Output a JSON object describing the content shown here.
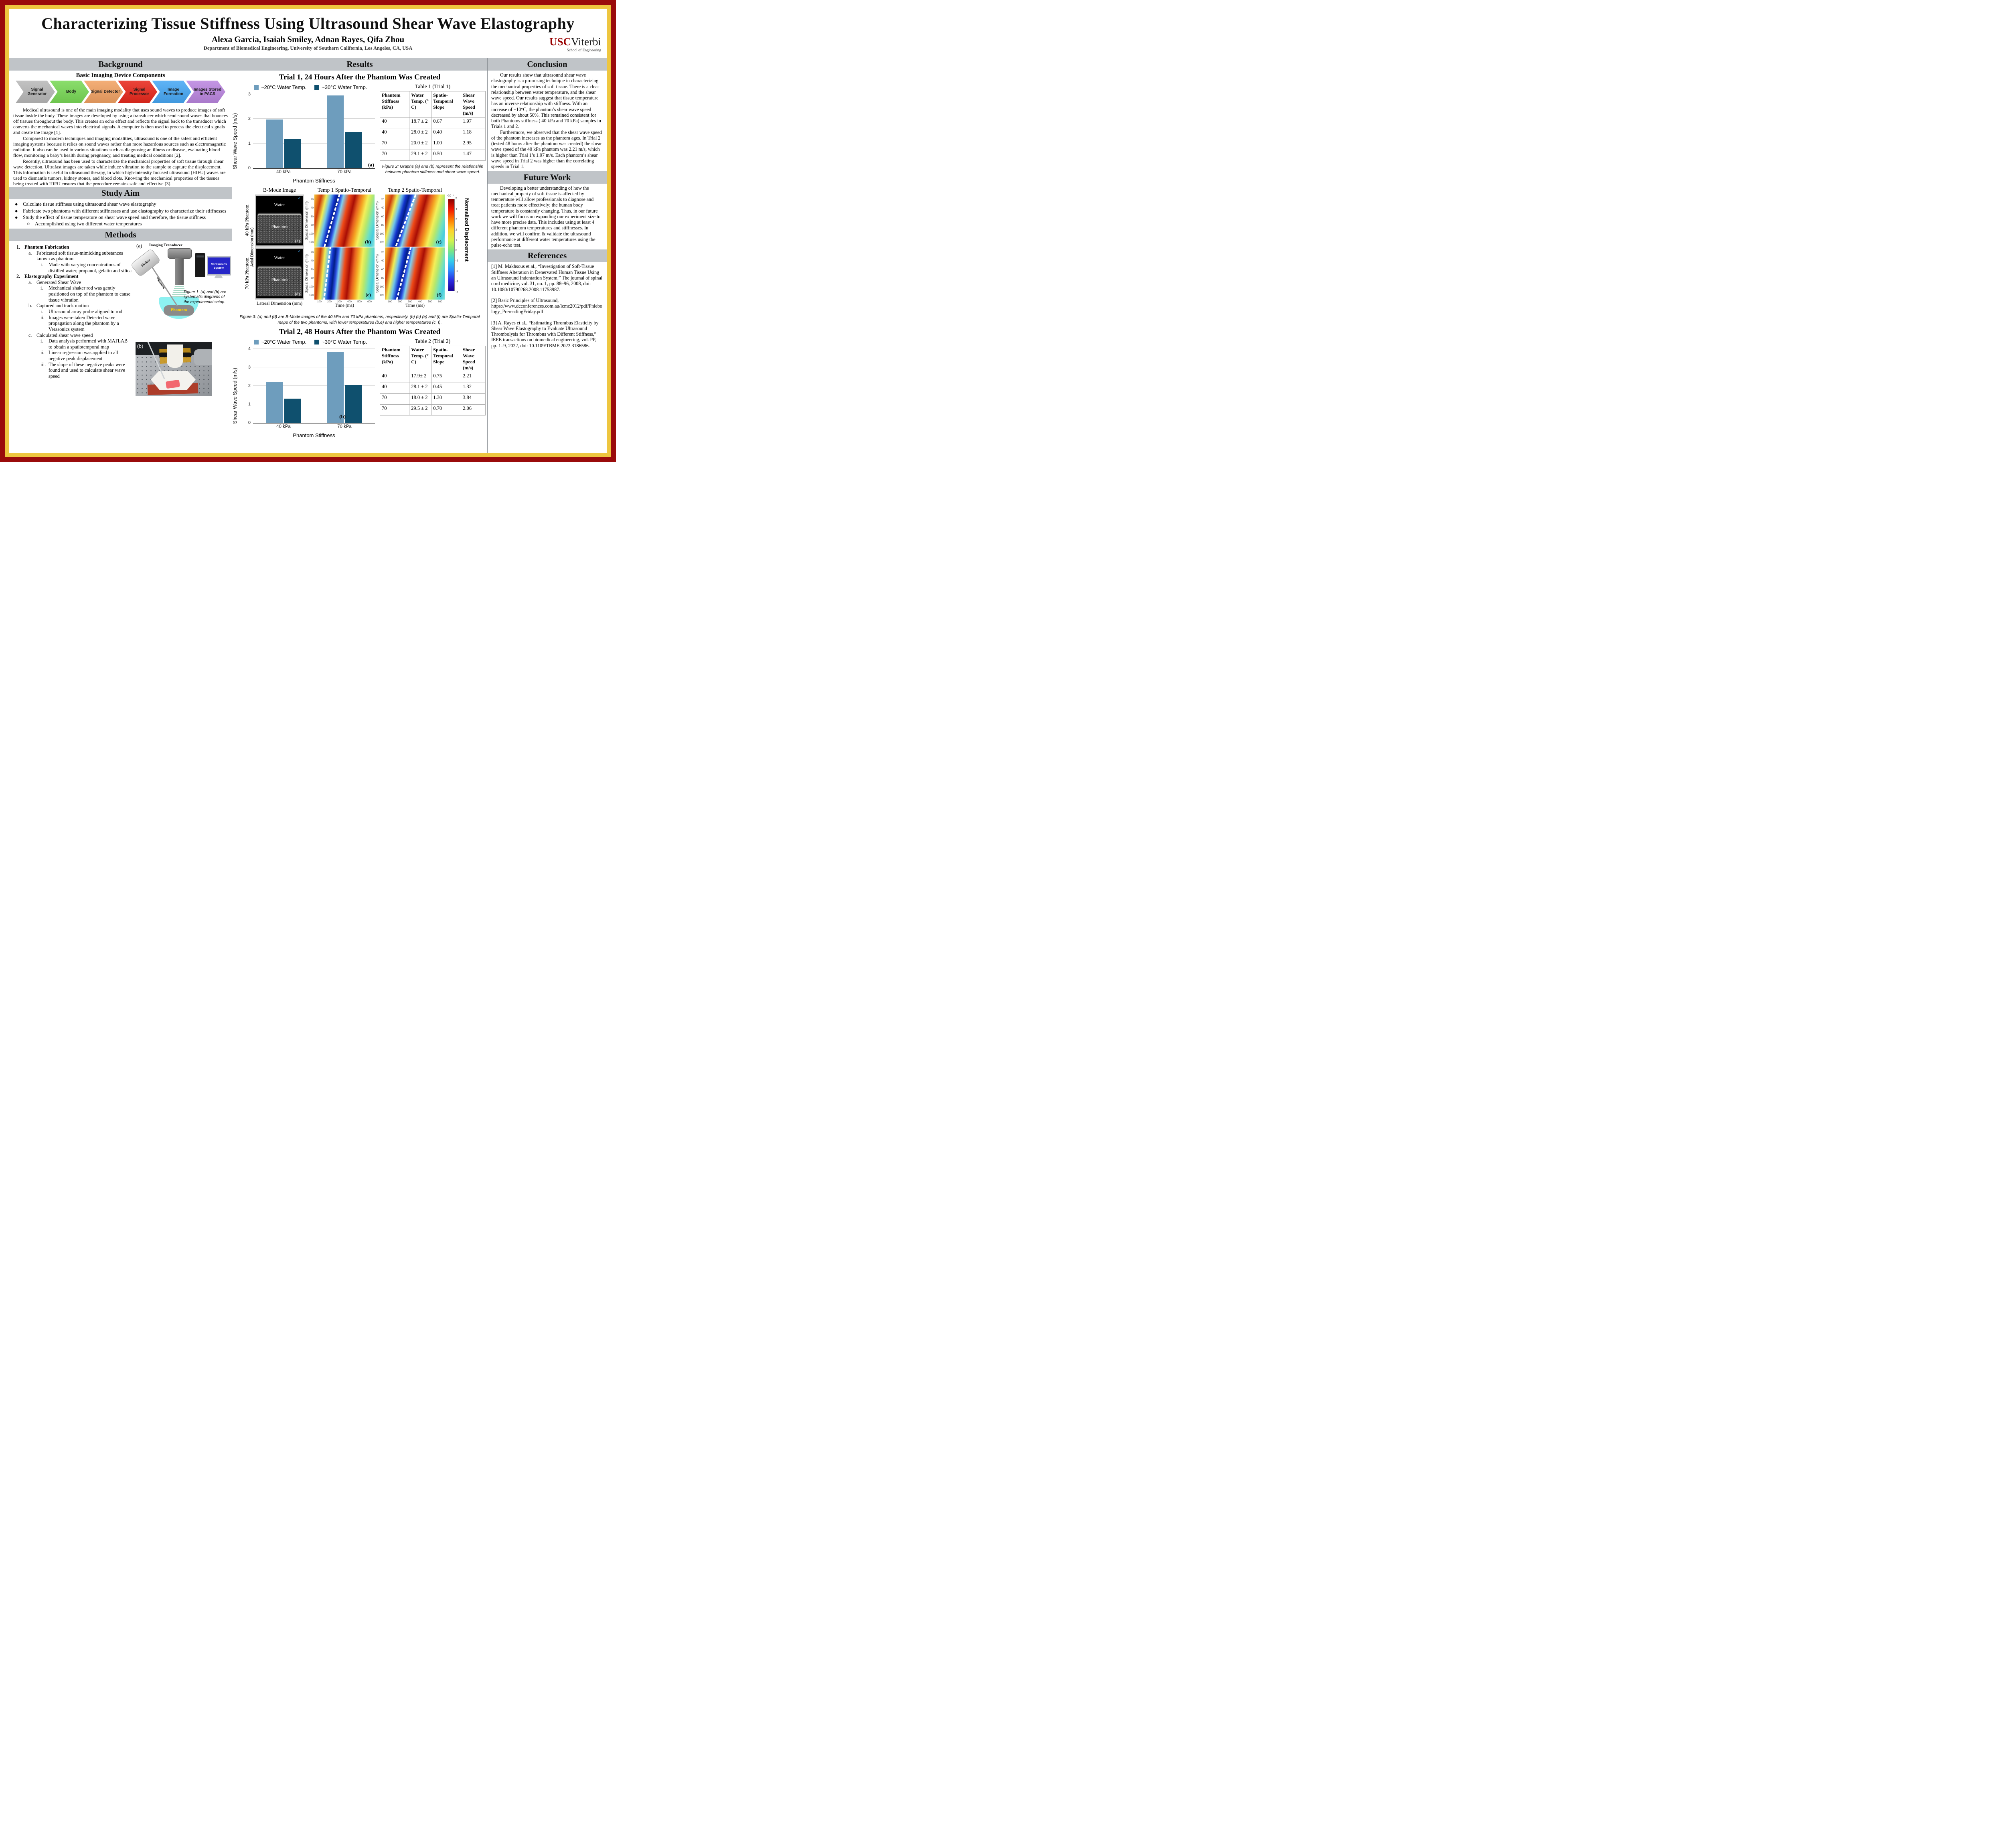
{
  "poster": {
    "title": "Characterizing Tissue Stiffness Using Ultrasound Shear Wave Elastography",
    "authors": "Alexa Garcia, Isaiah Smiley, Adnan Rayes, Qifa Zhou",
    "affiliation": "Department of Biomedical Engineering, University of Southern California, Los Angeles, CA, USA",
    "logo": {
      "usc": "USC",
      "viterbi": "Viterbi",
      "school": "School of Engineering"
    }
  },
  "background": {
    "header": "Background",
    "diagram_title": "Basic Imaging Device Components",
    "pipeline": [
      {
        "label": "Signal Generator",
        "color": "#b9b9b9"
      },
      {
        "label": "Body",
        "color": "#79d956"
      },
      {
        "label": "Signal Detector",
        "color": "#f2a263"
      },
      {
        "label": "Signal Processor",
        "color": "#e8281c"
      },
      {
        "label": "Image Formation",
        "color": "#47a8f5"
      },
      {
        "label": "Images Stored in PACS",
        "color": "#bb86e0"
      }
    ],
    "paragraphs": [
      "Medical ultrasound is one of the main imaging modality that uses sound waves to produce images of soft tissue inside the body. These images are developed by using a transducer which send sound waves that bounces off tissues throughout the body. This creates an echo effect and reflects the signal back to the transducer which converts the mechanical waves into electrical signals. A computer is then used to process the electrical signals and create the image [1].",
      "Compared to modern techniques and imaging modalities, ultrasound is one of the safest and efficient imaging systems because it relies on sound waves rather than more hazardous sources such as electromagnetic radiation. It also can be used in various situations such as diagnosing an illness or disease, evaluating blood flow, monitoring a baby’s health during pregnancy, and treating medical conditions [2].",
      "Recently, ultrasound has been used to characterize the mechanical properties of soft tissue through shear wave detection. Ultrafast images are taken while induce vibration to the sample to capture the displacement. This information is useful in ultrasound therapy, in which high-intensity focused ultrasound (HIFU) waves are used to dismantle tumors, kidney stones, and blood clots. Knowing the mechanical properties of the tissues being treated with HIFU ensures that the procedure remains safe and effective [3]."
    ]
  },
  "study_aim": {
    "header": "Study Aim",
    "items": [
      {
        "m": "●",
        "t": "Calculate tissue stiffness using ultrasound shear wave elastography",
        "i": 0
      },
      {
        "m": "●",
        "t": "Fabricate two phantoms with different stiffnesses and use elastography to characterize their stiffnesses",
        "i": 0
      },
      {
        "m": "●",
        "t": "Study the effect of tissue temperature  on shear wave speed and therefore, the tissue stiffness",
        "i": 0
      },
      {
        "m": "○",
        "t": "Accomplished using two different water temperatures",
        "i": 1
      }
    ]
  },
  "methods": {
    "header": "Methods",
    "items": [
      {
        "m": "1.",
        "t": "Phantom Fabrication",
        "i": 0,
        "b": true
      },
      {
        "m": "a.",
        "t": "Fabricated soft tissue-mimicking substances known as phantom",
        "i": 1
      },
      {
        "m": "i.",
        "t": "Made with varying concentrations of distilled water, propanol, gelatin and silica",
        "i": 2
      },
      {
        "m": "2.",
        "t": "Elastography Experiment",
        "i": 0,
        "b": true
      },
      {
        "m": "a.",
        "t": "Generated Shear Wave",
        "i": 1
      },
      {
        "m": "i.",
        "t": "Mechanical shaker rod was gently positioned on top of the phantom to cause tissue vibration",
        "i": 2
      },
      {
        "m": "b.",
        "t": "Captured and track motion",
        "i": 1
      },
      {
        "m": "i.",
        "t": "Ultrasound array probe aligned to rod",
        "i": 2
      },
      {
        "m": "ii.",
        "t": "Images were taken Detected wave propagation along the phantom by a Verasonics system",
        "i": 2
      },
      {
        "m": "c.",
        "t": "Calculated shear wave speed",
        "i": 1
      },
      {
        "m": "i.",
        "t": "Data analysis performed with MATLAB to obtain a spatiotemporal map",
        "i": 2
      },
      {
        "m": "ii.",
        "t": "Linear regression was applied to all negative peak displacement",
        "i": 2
      },
      {
        "m": "iii.",
        "t": "The slope of these negative peaks were found and used to calculate shear wave speed",
        "i": 2
      }
    ],
    "figure1": {
      "panel_a": "(a)",
      "panel_b": "(b)",
      "imaging_transducer": "Imaging Transducer",
      "shaker": "Shaker",
      "vibration": "Vibration",
      "phantom": "Phantom",
      "verasonics": "Verasonics System",
      "caption": "Figure 1: (a) and (b) are systematic diagrams of the experimental setup."
    }
  },
  "results": {
    "header": "Results",
    "table1": {
      "title": "Table 1 (Trial 1)",
      "headers": [
        "Phantom Stiffness (kPa)",
        "Water Temp. (° C)",
        "Spatio-Temporal Slope",
        "Shear Wave Speed (m/s)"
      ],
      "rows": [
        [
          "40",
          "18.7 ± 2",
          "0.67",
          "1.97"
        ],
        [
          "40",
          "28.0 ± 2",
          "0.40",
          "1.18"
        ],
        [
          "70",
          "20.0 ± 2",
          "1.00",
          "2.95"
        ],
        [
          "70",
          "29.1 ± 2",
          "0.50",
          "1.47"
        ]
      ]
    },
    "figure2_caption": "Figure 2: Graphs (a) and (b) represent the relationship between phantom stiffness and shear wave speed.",
    "figure3": {
      "col_headers": [
        "B-Mode Image",
        "Temp 1 Spatio-Temporal",
        "Temp 2 Spatio-Temporal"
      ],
      "row_labels": [
        "40 kPa Phantom",
        "70 kPa Phantom"
      ],
      "axial_label": "Axial Dimension (mm)",
      "lateral_label": "Lateral Dimension (mm)",
      "spatial_label": "Spatial Dimension (mm)",
      "time_label": "Time (ms)",
      "water": "Water",
      "phantom": "Phantom",
      "check": "✓",
      "panel_labels": [
        "(a)",
        "(b)",
        "(c)",
        "(d)",
        "(e)",
        "(f)"
      ],
      "spatial_ticks": [
        20,
        40,
        60,
        80,
        100,
        120
      ],
      "time_ticks": [
        100,
        200,
        300,
        400,
        500,
        600
      ],
      "colorbar": {
        "label": "Normalized Displacement",
        "scale": "×10⁻⁵",
        "ticks": [
          5,
          4,
          3,
          2,
          1,
          0,
          -1,
          -2,
          -3,
          -4
        ]
      }
    },
    "figure3_caption": "Figure 3: (a) and (d) are B-Mode images of the 40 kPa and 70 kPa phantoms, respectively. (b) (c) (e) and (f) are Spatio-Temporal maps of the two phantoms, with lower temperatures (b,e) and higher temperatures (c, f).",
    "table2": {
      "title": "Table 2 (Trial 2)",
      "headers": [
        "Phantom Stiffness (kPa)",
        "Water Temp. (° C)",
        "Spatio-Temporal Slope",
        "Shear Wave Speed (m/s)"
      ],
      "rows": [
        [
          "40",
          "17.9± 2",
          "0.75",
          "2.21"
        ],
        [
          "40",
          "28.1 ± 2",
          "0.45",
          "1.32"
        ],
        [
          "70",
          "18.0 ± 2",
          "1.30",
          "3.84"
        ],
        [
          "70",
          "29.5 ± 2",
          "0.70",
          "2.06"
        ]
      ]
    }
  },
  "conclusion": {
    "header": "Conclusion",
    "paragraphs": [
      "Our results show that ultrasound shear wave elastography is a promising technique in characterizing the mechanical properties of soft tissue. There is a clear relationship between water temperature, and the shear wave speed. Our results suggest that  tissue temperature has an inverse relationship with stiffness. With an increase of ~10°C, the phantom’s shear wave speed decreased by about 50%. This remained consistent for both Phantoms stiffness ( 40 kPa and 70 kPa) samples in Trials 1 and 2.",
      "Furthermore, we observed that the shear wave speed of the phantom increases as the phantom ages. In Trial 2 (tested 48 hours after the phantom was created) the shear wave speed of the 40 kPa phantom was 2.21 m/s, which is higher than Trial 1’s 1.97 m/s. Each phantom’s shear wave speed in Trial 2 was higher than the correlating speeds in Trial 1."
    ]
  },
  "future_work": {
    "header": "Future Work",
    "text": "Developing a better understanding of how the mechanical property of soft tissue is affected by temperature will allow professionals to diagnose and treat patients more effectively; the human body temperature is constantly changing. Thus, in our future work we will focus on expanding our experiment size to have more precise data. This includes using at least 4 different phantom temperatures and stiffnesses. In addition, we will confirm &  validate the ultrasound performance at different water temperatures using the pulse-echo test."
  },
  "references": {
    "header": "References",
    "items": [
      "[1]  M. Makhsous et al., “Investigation of Soft-Tissue Stiffness Alteration in Denervated Human Tissue Using an Ultrasound Indentation System,” The journal of spinal cord medicine, vol. 31, no. 1, pp. 88–96, 2008, doi: 10.1080/10790268.2008.11753987.",
      "[2] Basic Principles of Ultrasound, https://www.dcconferences.com.au/lcmc2012/pdf/Phlebology_PrereadingFriday.pdf",
      "[3] A. Rayes et al., “Estimating Thrombus Elasticity by Shear Wave Elastography to Evaluate Ultrasound Thrombolysis for Thrombus with Different Stiffness,” IEEE transactions on biomedical engineering, vol. PP, pp. 1–9, 2022, doi: 10.1109/TBME.2022.3186586."
    ]
  },
  "chart_data": [
    {
      "type": "bar",
      "title": "Trial 1, 24 Hours After the Phantom Was Created",
      "categories": [
        "40 kPa",
        "70 kPa"
      ],
      "series": [
        {
          "name": "~20°C Water Temp.",
          "color": "#6e9dbd",
          "values": [
            1.97,
            2.95
          ]
        },
        {
          "name": "~30°C Water Temp.",
          "color": "#0f506e",
          "values": [
            1.18,
            1.47
          ]
        }
      ],
      "xlabel": "Phantom Stiffness",
      "ylabel": "Shear Wave Speed (m/s)",
      "ylim": [
        0,
        3
      ],
      "yticks": [
        0,
        1,
        2,
        3
      ],
      "grid": true,
      "legend_position": "top",
      "panel_label": "(a)"
    },
    {
      "type": "bar",
      "title": "Trial 2, 48 Hours After the Phantom Was Created",
      "categories": [
        "40 kPa",
        "70 kPa"
      ],
      "series": [
        {
          "name": "~20°C Water Temp.",
          "color": "#6e9dbd",
          "values": [
            2.21,
            3.84
          ]
        },
        {
          "name": "~30°C Water Temp.",
          "color": "#0f506e",
          "values": [
            1.32,
            2.06
          ]
        }
      ],
      "xlabel": "Phantom Stiffness",
      "ylabel": "Shear Wave Speed (m/s)",
      "ylim": [
        0,
        4
      ],
      "yticks": [
        0,
        1,
        2,
        3,
        4
      ],
      "grid": true,
      "legend_position": "top",
      "panel_label": "(b)"
    }
  ]
}
